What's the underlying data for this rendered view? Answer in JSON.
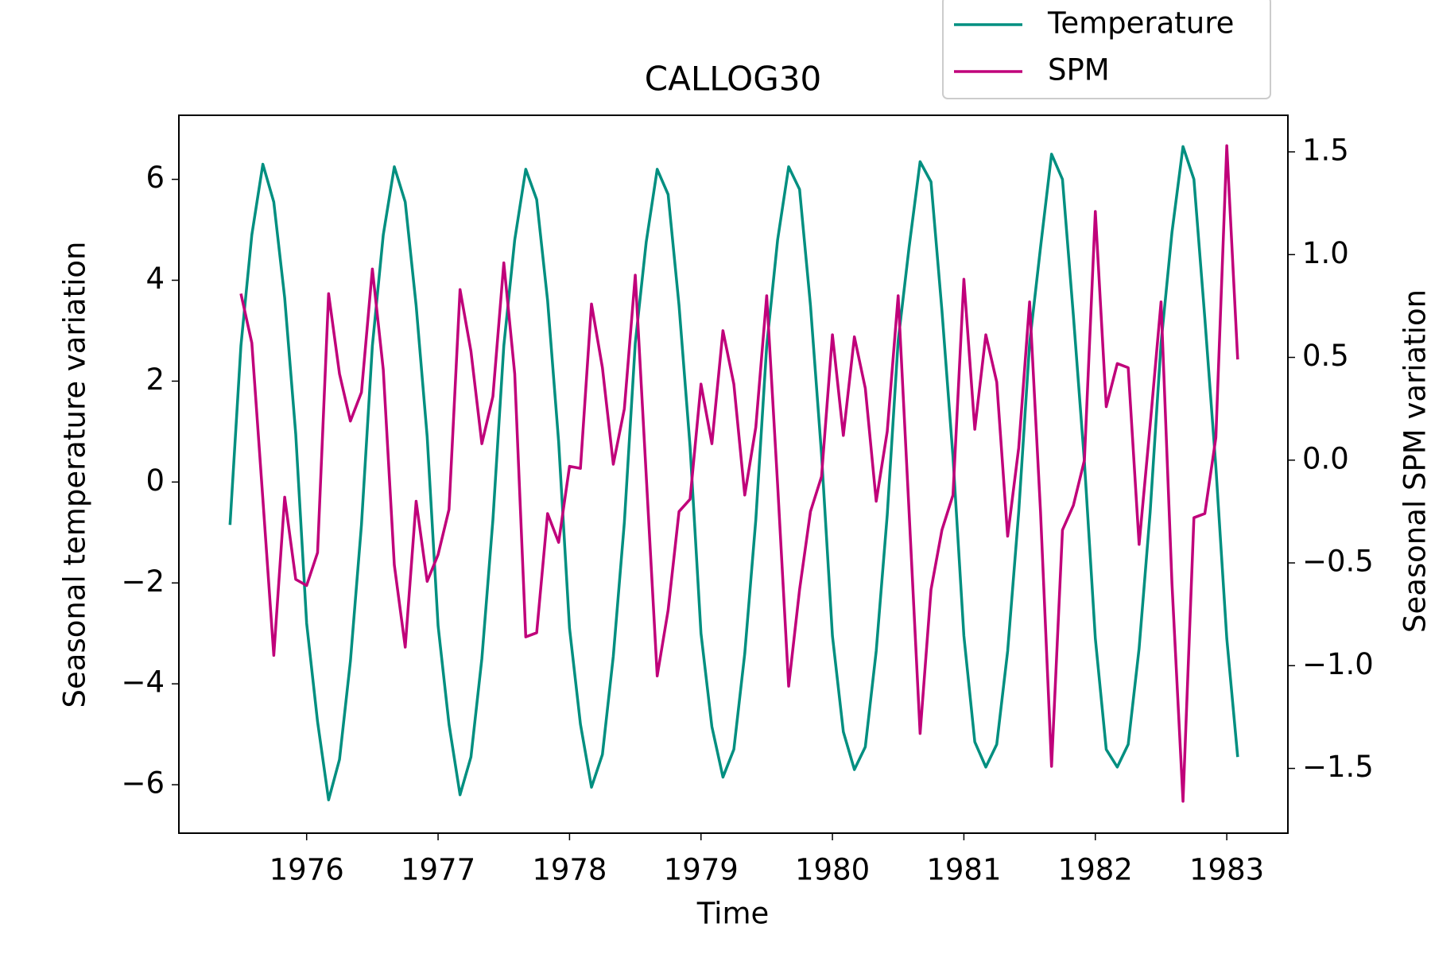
{
  "chart_data": {
    "type": "line",
    "title": "CALLOG30",
    "x_label": "Time",
    "y_label": "Seasonal temperature variation",
    "y2_label": "Seasonal SPM variation",
    "legend": "upper right",
    "x": [
      1975.417,
      1975.5,
      1975.583,
      1975.667,
      1975.75,
      1975.833,
      1975.917,
      1976,
      1976.083,
      1976.167,
      1976.25,
      1976.333,
      1976.417,
      1976.5,
      1976.583,
      1976.667,
      1976.75,
      1976.833,
      1976.917,
      1977,
      1977.083,
      1977.167,
      1977.25,
      1977.333,
      1977.417,
      1977.5,
      1977.583,
      1977.667,
      1977.75,
      1977.833,
      1977.917,
      1978,
      1978.083,
      1978.167,
      1978.25,
      1978.333,
      1978.417,
      1978.5,
      1978.583,
      1978.667,
      1978.75,
      1978.833,
      1978.917,
      1979,
      1979.083,
      1979.167,
      1979.25,
      1979.333,
      1979.417,
      1979.5,
      1979.583,
      1979.667,
      1979.75,
      1979.833,
      1979.917,
      1980,
      1980.083,
      1980.167,
      1980.25,
      1980.333,
      1980.417,
      1980.5,
      1980.583,
      1980.667,
      1980.75,
      1980.833,
      1980.917,
      1981,
      1981.083,
      1981.167,
      1981.25,
      1981.333,
      1981.417,
      1981.5,
      1981.583,
      1981.667,
      1981.75,
      1981.833,
      1981.917,
      1982,
      1982.083,
      1982.167,
      1982.25,
      1982.333,
      1982.417,
      1982.5,
      1982.583,
      1982.667,
      1982.75,
      1982.833,
      1982.917,
      1983,
      1983.083
    ],
    "series": [
      {
        "name": "Temperature",
        "color": "#008f80",
        "values": [
          -0.85,
          2.7,
          4.9,
          6.3,
          5.55,
          3.65,
          0.95,
          -2.8,
          -4.75,
          -6.3,
          -5.5,
          -3.55,
          -0.85,
          2.7,
          4.9,
          6.25,
          5.55,
          3.5,
          0.9,
          -2.85,
          -4.8,
          -6.2,
          -5.45,
          -3.5,
          -0.75,
          2.7,
          4.8,
          6.2,
          5.6,
          3.6,
          0.8,
          -2.9,
          -4.8,
          -6.05,
          -5.4,
          -3.45,
          -0.8,
          2.75,
          4.75,
          6.2,
          5.7,
          3.5,
          0.7,
          -3.0,
          -4.85,
          -5.85,
          -5.3,
          -3.4,
          -0.75,
          2.7,
          4.8,
          6.25,
          5.8,
          3.5,
          0.55,
          -3.05,
          -4.95,
          -5.7,
          -5.25,
          -3.35,
          -0.65,
          2.8,
          4.65,
          6.35,
          5.95,
          3.4,
          0.5,
          -3.05,
          -5.15,
          -5.65,
          -5.2,
          -3.35,
          -0.6,
          2.75,
          4.65,
          6.5,
          6.0,
          3.3,
          0.4,
          -3.1,
          -5.3,
          -5.65,
          -5.2,
          -3.3,
          -0.6,
          2.75,
          4.95,
          6.65,
          6.0,
          3.25,
          0.3,
          -3.1,
          -5.45
        ]
      },
      {
        "name": "SPM",
        "color": "#c0007a",
        "axis": "y2",
        "values": [
          null,
          0.81,
          0.57,
          -0.19,
          -0.95,
          -0.18,
          -0.58,
          -0.61,
          -0.45,
          0.81,
          0.42,
          0.19,
          0.33,
          0.93,
          0.44,
          -0.51,
          -0.91,
          -0.2,
          -0.59,
          -0.46,
          -0.24,
          0.83,
          0.53,
          0.08,
          0.31,
          0.96,
          0.42,
          -0.86,
          -0.84,
          -0.26,
          -0.4,
          -0.03,
          -0.04,
          0.76,
          0.45,
          -0.02,
          0.25,
          0.9,
          -0.07,
          -1.05,
          -0.73,
          -0.25,
          -0.19,
          0.37,
          0.08,
          0.63,
          0.37,
          -0.17,
          0.16,
          0.8,
          -0.12,
          -1.1,
          -0.63,
          -0.25,
          -0.08,
          0.61,
          0.12,
          0.6,
          0.35,
          -0.2,
          0.14,
          0.8,
          -0.25,
          -1.33,
          -0.63,
          -0.34,
          -0.17,
          0.88,
          0.15,
          0.61,
          0.38,
          -0.37,
          0.06,
          0.77,
          -0.25,
          -1.49,
          -0.34,
          -0.22,
          0.0,
          1.21,
          0.26,
          0.47,
          0.45,
          -0.41,
          0.17,
          0.77,
          -0.6,
          -1.66,
          -0.28,
          -0.26,
          0.11,
          1.53,
          0.49
        ]
      }
    ],
    "xlim": [
      1975.028,
      1983.465
    ],
    "xticks": [
      1976,
      1977,
      1978,
      1979,
      1980,
      1981,
      1982,
      1983
    ],
    "ylim": [
      -6.96,
      7.27
    ],
    "yticks": [
      {
        "value": -6,
        "label": "−6"
      },
      {
        "value": -4,
        "label": "−4"
      },
      {
        "value": -2,
        "label": "−2"
      },
      0,
      2,
      4,
      6
    ],
    "y2lim": [
      -1.815,
      1.678
    ],
    "y2ticks": [
      {
        "value": -1.5,
        "label": "−1.5"
      },
      {
        "value": -1,
        "label": "−1.0"
      },
      {
        "value": -0.5,
        "label": "−0.5"
      },
      {
        "value": 0,
        "label": "0.0"
      },
      0.5,
      {
        "value": 1,
        "label": "1.0"
      },
      1.5
    ]
  }
}
